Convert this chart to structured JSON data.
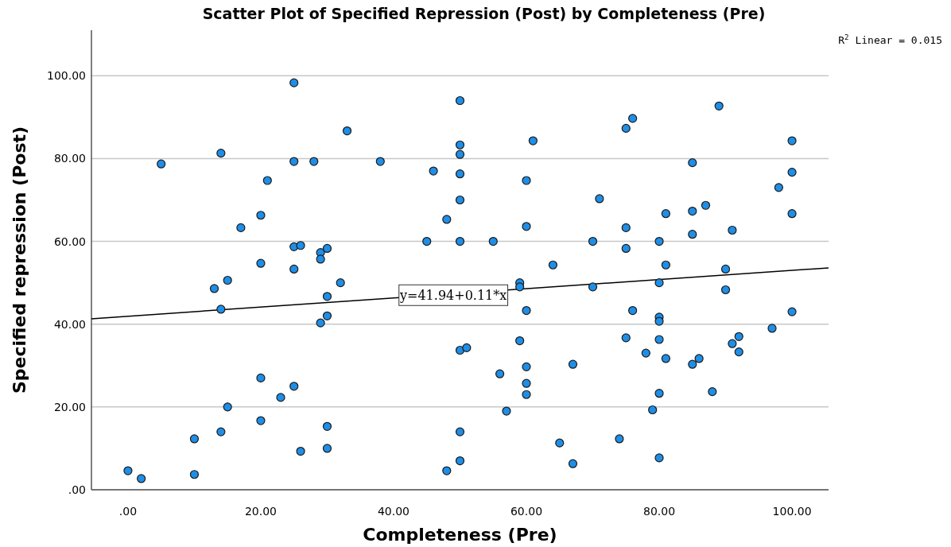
{
  "chart_data": {
    "type": "scatter",
    "title": "Scatter Plot of Specified Repression (Post) by Completeness (Pre)",
    "xlabel": "Completeness (Pre)",
    "ylabel": "Specified repression (Post)",
    "annotations": [
      "R$^{2}$ Linear = 0.015",
      {
        "text": "y=41.94+0.11*x",
        "x": 49,
        "y": 47
      }
    ],
    "xlim": [
      -5.5,
      105.5
    ],
    "ylim": [
      0,
      111
    ],
    "xticks": [
      {
        "value": 0,
        "label": ".00"
      },
      {
        "value": 20,
        "label": "20.00"
      },
      {
        "value": 40,
        "label": "40.00"
      },
      {
        "value": 60,
        "label": "60.00"
      },
      {
        "value": 80,
        "label": "80.00"
      },
      {
        "value": 100,
        "label": "100.00"
      }
    ],
    "yticks": [
      {
        "value": 0,
        "label": ".00"
      },
      {
        "value": 20,
        "label": "20.00"
      },
      {
        "value": 40,
        "label": "40.00"
      },
      {
        "value": 60,
        "label": "60.00"
      },
      {
        "value": 80,
        "label": "80.00"
      },
      {
        "value": 100,
        "label": "100.00"
      }
    ],
    "grid": "y",
    "series": [
      {
        "color": "#1f8ee6",
        "marker": "circle",
        "x": [
          0,
          2,
          5,
          10,
          10,
          13,
          14,
          14,
          14,
          15,
          15,
          17,
          20,
          20,
          20,
          20,
          21,
          23,
          25,
          25,
          25,
          25,
          25,
          26,
          26,
          28,
          29,
          29,
          29,
          30,
          30,
          30,
          30,
          30,
          32,
          33,
          38,
          45,
          46,
          48,
          48,
          50,
          50,
          50,
          50,
          50,
          50,
          50,
          51,
          50,
          50,
          55,
          56,
          57,
          59,
          59,
          59,
          60,
          60,
          60,
          60,
          60,
          60,
          61,
          64,
          65,
          67,
          67,
          70,
          70,
          71,
          74,
          75,
          75,
          75,
          75,
          76,
          76,
          78,
          79,
          80,
          80,
          80,
          80,
          80,
          80,
          80,
          81,
          81,
          81,
          85,
          85,
          85,
          85,
          86,
          87,
          88,
          89,
          90,
          90,
          91,
          91,
          92,
          92,
          97,
          98,
          100,
          100,
          100,
          100
        ],
        "values": [
          4.6,
          2.7,
          78.7,
          12.3,
          3.7,
          48.6,
          81.3,
          43.6,
          14.0,
          50.6,
          20.0,
          63.3,
          66.3,
          54.7,
          27.0,
          16.7,
          74.7,
          22.3,
          98.3,
          79.3,
          58.7,
          53.3,
          25.0,
          59.0,
          9.3,
          79.3,
          57.3,
          55.7,
          40.3,
          58.3,
          46.7,
          42.0,
          15.3,
          10.0,
          50.0,
          86.7,
          79.3,
          60.0,
          77.0,
          65.3,
          4.6,
          94.0,
          83.3,
          81.0,
          76.3,
          70.0,
          60.0,
          33.7,
          34.3,
          14.0,
          7.0,
          60.0,
          28.0,
          19.0,
          50.0,
          49.0,
          36.0,
          74.7,
          63.6,
          43.3,
          29.7,
          25.7,
          23.0,
          84.3,
          54.3,
          11.3,
          30.3,
          6.3,
          60.0,
          49.0,
          70.3,
          12.3,
          87.3,
          63.3,
          58.3,
          36.7,
          89.7,
          43.3,
          33.0,
          19.3,
          60.0,
          50.0,
          41.7,
          40.7,
          36.3,
          23.3,
          7.7,
          66.7,
          54.3,
          31.7,
          79.0,
          67.3,
          61.7,
          30.3,
          31.7,
          68.7,
          23.7,
          92.7,
          53.3,
          48.3,
          62.7,
          35.3,
          37.0,
          33.3,
          39.0,
          73.0,
          84.3,
          76.7,
          66.7,
          43.0
        ]
      },
      {
        "type": "line",
        "color": "#000000",
        "x": [
          -5.5,
          105.5
        ],
        "values": [
          41.3,
          53.6
        ],
        "marker": "none",
        "line_style": "solid"
      }
    ]
  }
}
